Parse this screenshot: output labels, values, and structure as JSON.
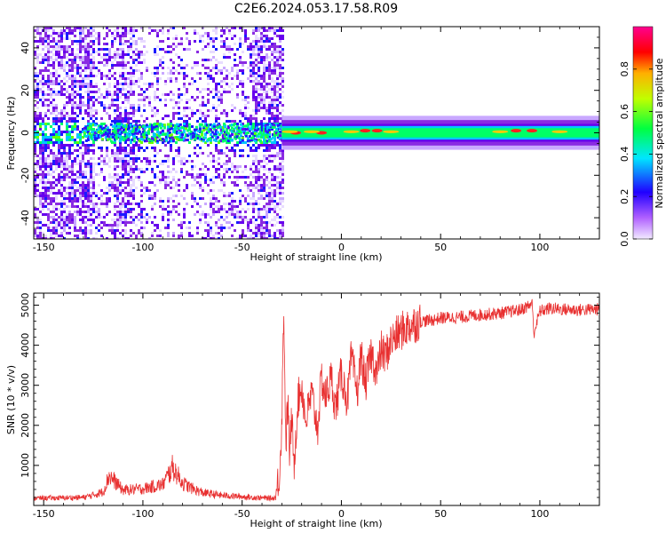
{
  "figure_title": "C2E6.2024.053.17.58.R09",
  "chart_data": [
    {
      "type": "heatmap",
      "title": "",
      "xlabel": "Height of straight line (km)",
      "ylabel": "Frequency (Hz)",
      "xlim": [
        -155,
        130
      ],
      "ylim": [
        -50,
        50
      ],
      "xticks": [
        -150,
        -100,
        -50,
        0,
        50,
        100
      ],
      "yticks": [
        -40,
        -20,
        0,
        20,
        40
      ],
      "grid": false,
      "colorbar": {
        "label": "Normalized spectral amplitude",
        "range": [
          0.0,
          1.0
        ],
        "ticks": [
          0.0,
          0.2,
          0.4,
          0.6,
          0.8
        ],
        "tick_labels": [
          "0.0",
          "0.2",
          "0.4",
          "0.6",
          "0.8"
        ],
        "colormap": [
          "#f2eaff",
          "#7a00e6",
          "#0000ff",
          "#00e6ff",
          "#00ff00",
          "#ffff00",
          "#ff0000",
          "#ff00a0"
        ]
      },
      "description_regions": [
        {
          "x_range": [
            -155,
            -30
          ],
          "pattern": "noisy scattered purple speckles across all frequencies, denser band near 0 Hz"
        },
        {
          "x_range": [
            -30,
            130
          ],
          "pattern": "narrow band centered at 0 Hz, mostly green, red peaks near 0, 10-20, 85-100 km"
        }
      ],
      "band_center_hz": 0,
      "band_peaks": [
        {
          "x": -23,
          "y": 0
        },
        {
          "x": -10,
          "y": 0
        },
        {
          "x": 12,
          "y": 1
        },
        {
          "x": 18,
          "y": 1
        },
        {
          "x": 88,
          "y": 1
        },
        {
          "x": 96,
          "y": 1
        }
      ]
    },
    {
      "type": "line",
      "title": "",
      "xlabel": "Height of straight line (km)",
      "ylabel": "SNR (10 * v/v)",
      "xlim": [
        -155,
        130
      ],
      "ylim": [
        0,
        5300
      ],
      "xticks": [
        -150,
        -100,
        -50,
        0,
        50,
        100
      ],
      "yticks": [
        1000,
        2000,
        3000,
        4000,
        5000
      ],
      "grid": false,
      "color": "#e83030",
      "series": [
        {
          "x": [
            -155,
            -140,
            -130,
            -125,
            -120,
            -117,
            -110,
            -100,
            -90,
            -85,
            -80,
            -75,
            -70,
            -60,
            -50,
            -45,
            -40,
            -35,
            -33,
            -31,
            -30,
            -29,
            -28,
            -27,
            -26,
            -25,
            -24,
            -22,
            -20,
            -18,
            -15,
            -12,
            -10,
            -8,
            -5,
            -3,
            0,
            3,
            5,
            8,
            10,
            12,
            15,
            18,
            20,
            22,
            25,
            28,
            30,
            35,
            40,
            45,
            50,
            60,
            70,
            80,
            90,
            95,
            96,
            97,
            100,
            105,
            110,
            120,
            130
          ],
          "y": [
            180,
            190,
            200,
            260,
            340,
            750,
            380,
            420,
            520,
            950,
            560,
            420,
            320,
            250,
            220,
            200,
            190,
            180,
            200,
            900,
            2200,
            5000,
            1500,
            2600,
            1200,
            2300,
            900,
            2600,
            3000,
            2100,
            2800,
            1900,
            3200,
            2700,
            3200,
            2400,
            3300,
            2600,
            3700,
            2800,
            3800,
            3000,
            3800,
            3300,
            3900,
            3700,
            4100,
            4250,
            4350,
            4500,
            4600,
            4620,
            4680,
            4700,
            4760,
            4800,
            4880,
            5000,
            5100,
            4300,
            4850,
            4920,
            4900,
            4880,
            4900
          ]
        }
      ]
    }
  ]
}
